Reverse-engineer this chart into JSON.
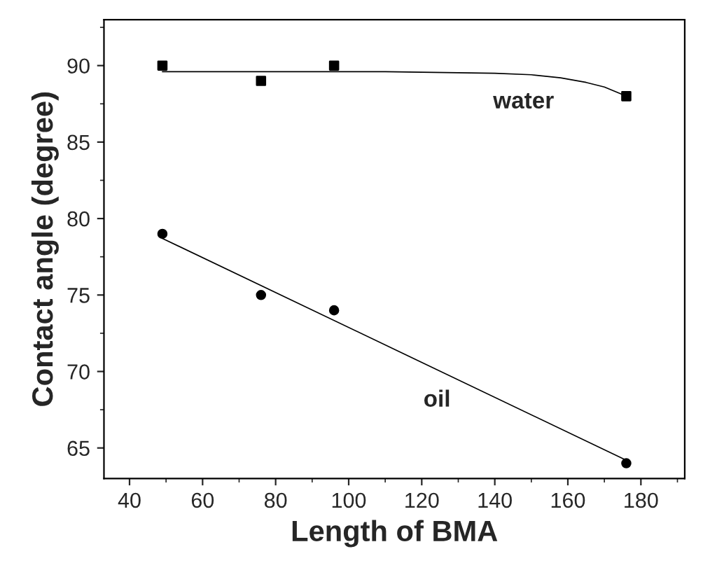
{
  "chart_data": {
    "type": "scatter",
    "xlabel": "Length of BMA",
    "ylabel": "Contact angle (degree)",
    "xlim": [
      33,
      192
    ],
    "xticks": [
      40,
      60,
      80,
      100,
      120,
      140,
      160,
      180
    ],
    "ylim": [
      63,
      93
    ],
    "yticks": [
      65,
      70,
      75,
      80,
      85,
      90
    ],
    "grid": false,
    "legend": false,
    "series": [
      {
        "marker": "square",
        "color": "#000000",
        "x": [
          49,
          76,
          96,
          176
        ],
        "values": [
          90,
          89,
          90,
          88
        ]
      },
      {
        "marker": "circle",
        "color": "#000000",
        "x": [
          49,
          76,
          96,
          176
        ],
        "values": [
          79,
          75,
          74,
          64
        ]
      },
      {
        "type": "line",
        "marker": "none",
        "line_style": "solid",
        "color": "#000000",
        "x": [
          49,
          80,
          110,
          140,
          150,
          158,
          165,
          170,
          176
        ],
        "values": [
          89.6,
          89.6,
          89.6,
          89.5,
          89.4,
          89.2,
          88.9,
          88.6,
          88.0
        ]
      },
      {
        "type": "line",
        "marker": "none",
        "line_style": "solid",
        "color": "#000000",
        "x": [
          49,
          176
        ],
        "values": [
          78.7,
          64.2
        ]
      }
    ],
    "annotations": [
      "water",
      "oil"
    ]
  }
}
